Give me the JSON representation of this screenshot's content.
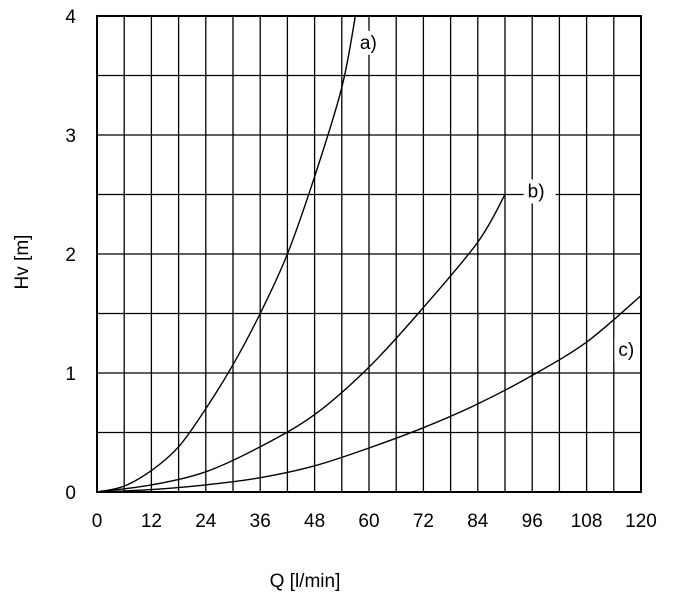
{
  "chart_data": {
    "type": "line",
    "xlabel": "Q [l/min]",
    "ylabel": "Hv [m]",
    "xlim": [
      0,
      120
    ],
    "ylim": [
      0,
      4
    ],
    "x_ticks": [
      0,
      12,
      24,
      36,
      48,
      60,
      72,
      84,
      96,
      108,
      120
    ],
    "y_ticks": [
      0,
      1,
      2,
      3,
      4
    ],
    "grid": true,
    "series": [
      {
        "name": "a)",
        "x": [
          0,
          6,
          12,
          18,
          24,
          30,
          36,
          42,
          48,
          54,
          57
        ],
        "y": [
          0,
          0.05,
          0.18,
          0.38,
          0.7,
          1.07,
          1.5,
          2.0,
          2.65,
          3.4,
          4.0
        ]
      },
      {
        "name": "b)",
        "x": [
          0,
          12,
          24,
          36,
          48,
          60,
          72,
          84,
          90
        ],
        "y": [
          0,
          0.06,
          0.17,
          0.38,
          0.65,
          1.05,
          1.55,
          2.1,
          2.5
        ]
      },
      {
        "name": "c)",
        "x": [
          0,
          12,
          24,
          36,
          48,
          60,
          72,
          84,
          96,
          108,
          120
        ],
        "y": [
          0,
          0.02,
          0.06,
          0.12,
          0.22,
          0.37,
          0.54,
          0.74,
          0.98,
          1.26,
          1.65
        ]
      }
    ],
    "annotations": [
      {
        "label": "a)",
        "x": 58,
        "y": 3.75
      },
      {
        "label": "b)",
        "x": 95,
        "y": 2.5
      },
      {
        "label": "c)",
        "x": 115,
        "y": 1.17
      }
    ]
  }
}
